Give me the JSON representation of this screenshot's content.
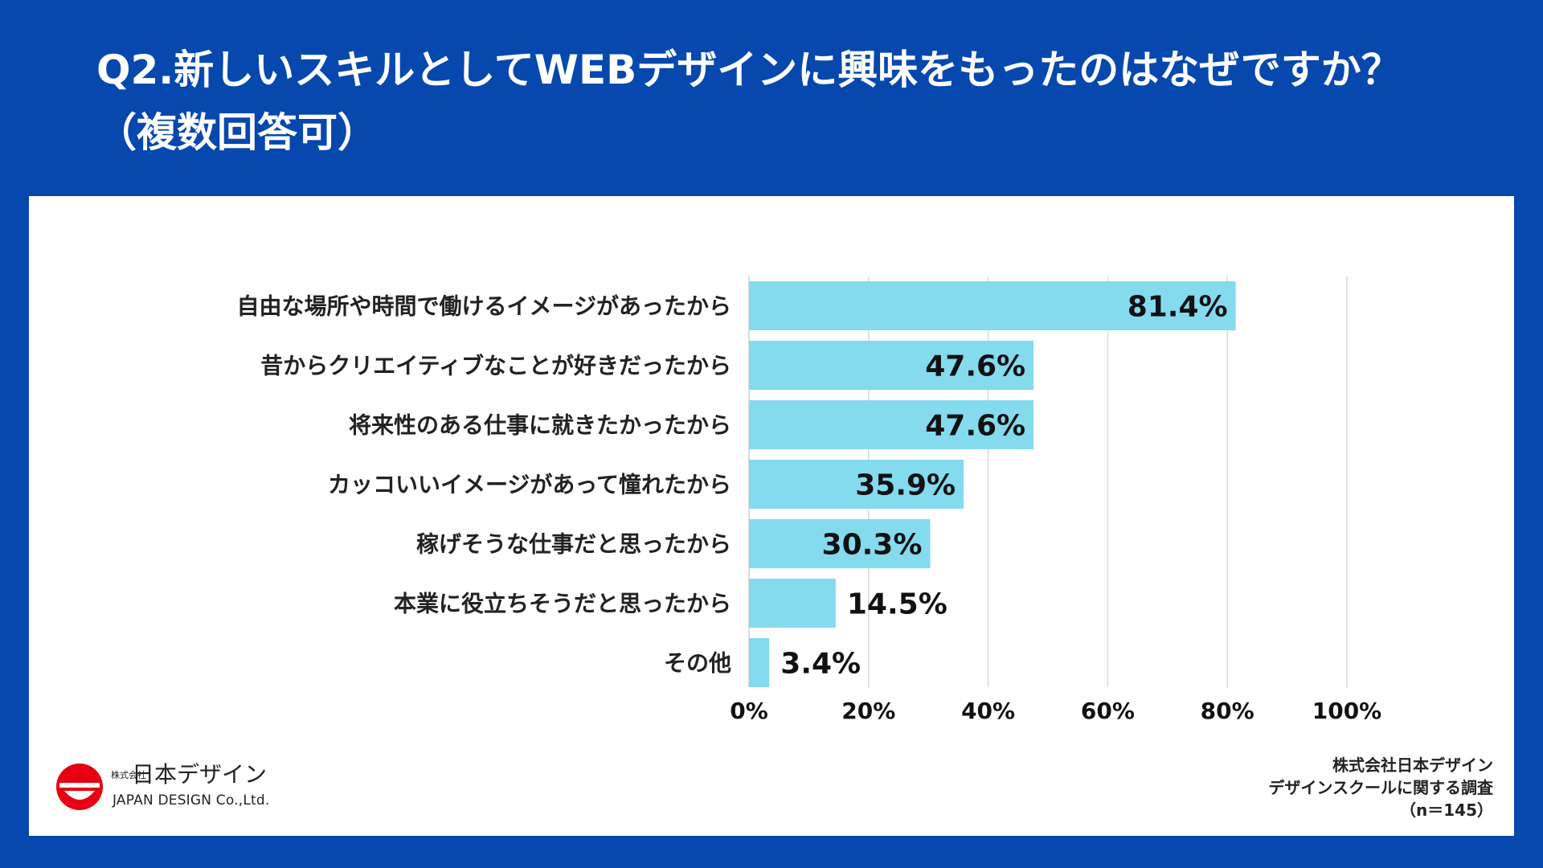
{
  "title": "Q2.新しいスキルとしてWEBデザインに興味をもったのはなぜですか？（複数回答可）",
  "chart_data": {
    "type": "bar",
    "orientation": "horizontal",
    "categories": [
      "自由な場所や時間で働けるイメージがあったから",
      "昔からクリエイティブなことが好きだったから",
      "将来性のある仕事に就きたかったから",
      "カッコいいイメージがあって憧れたから",
      "稼げそうな仕事だと思ったから",
      "本業に役立ちそうだと思ったから",
      "その他"
    ],
    "values": [
      81.4,
      47.6,
      47.6,
      35.9,
      30.3,
      14.5,
      3.4
    ],
    "value_labels": [
      "81.4%",
      "47.6%",
      "47.6%",
      "35.9%",
      "30.3%",
      "14.5%",
      "3.4%"
    ],
    "xlim": [
      0,
      100
    ],
    "ticks": [
      0,
      20,
      40,
      60,
      80,
      100
    ],
    "tick_labels": [
      "0%",
      "20%",
      "40%",
      "60%",
      "80%",
      "100%"
    ],
    "grid": true,
    "bar_color": "#84dbee",
    "grid_color": "#d9d9d9"
  },
  "logo": {
    "small_text": "株式会社",
    "name_jp": "日本デザイン",
    "name_en": "JAPAN DESIGN Co.,Ltd.",
    "mark_color": "#e60012"
  },
  "source": {
    "line1": "株式会社日本デザイン",
    "line2": "デザインスクールに関する調査",
    "line3": "（n＝145）"
  }
}
